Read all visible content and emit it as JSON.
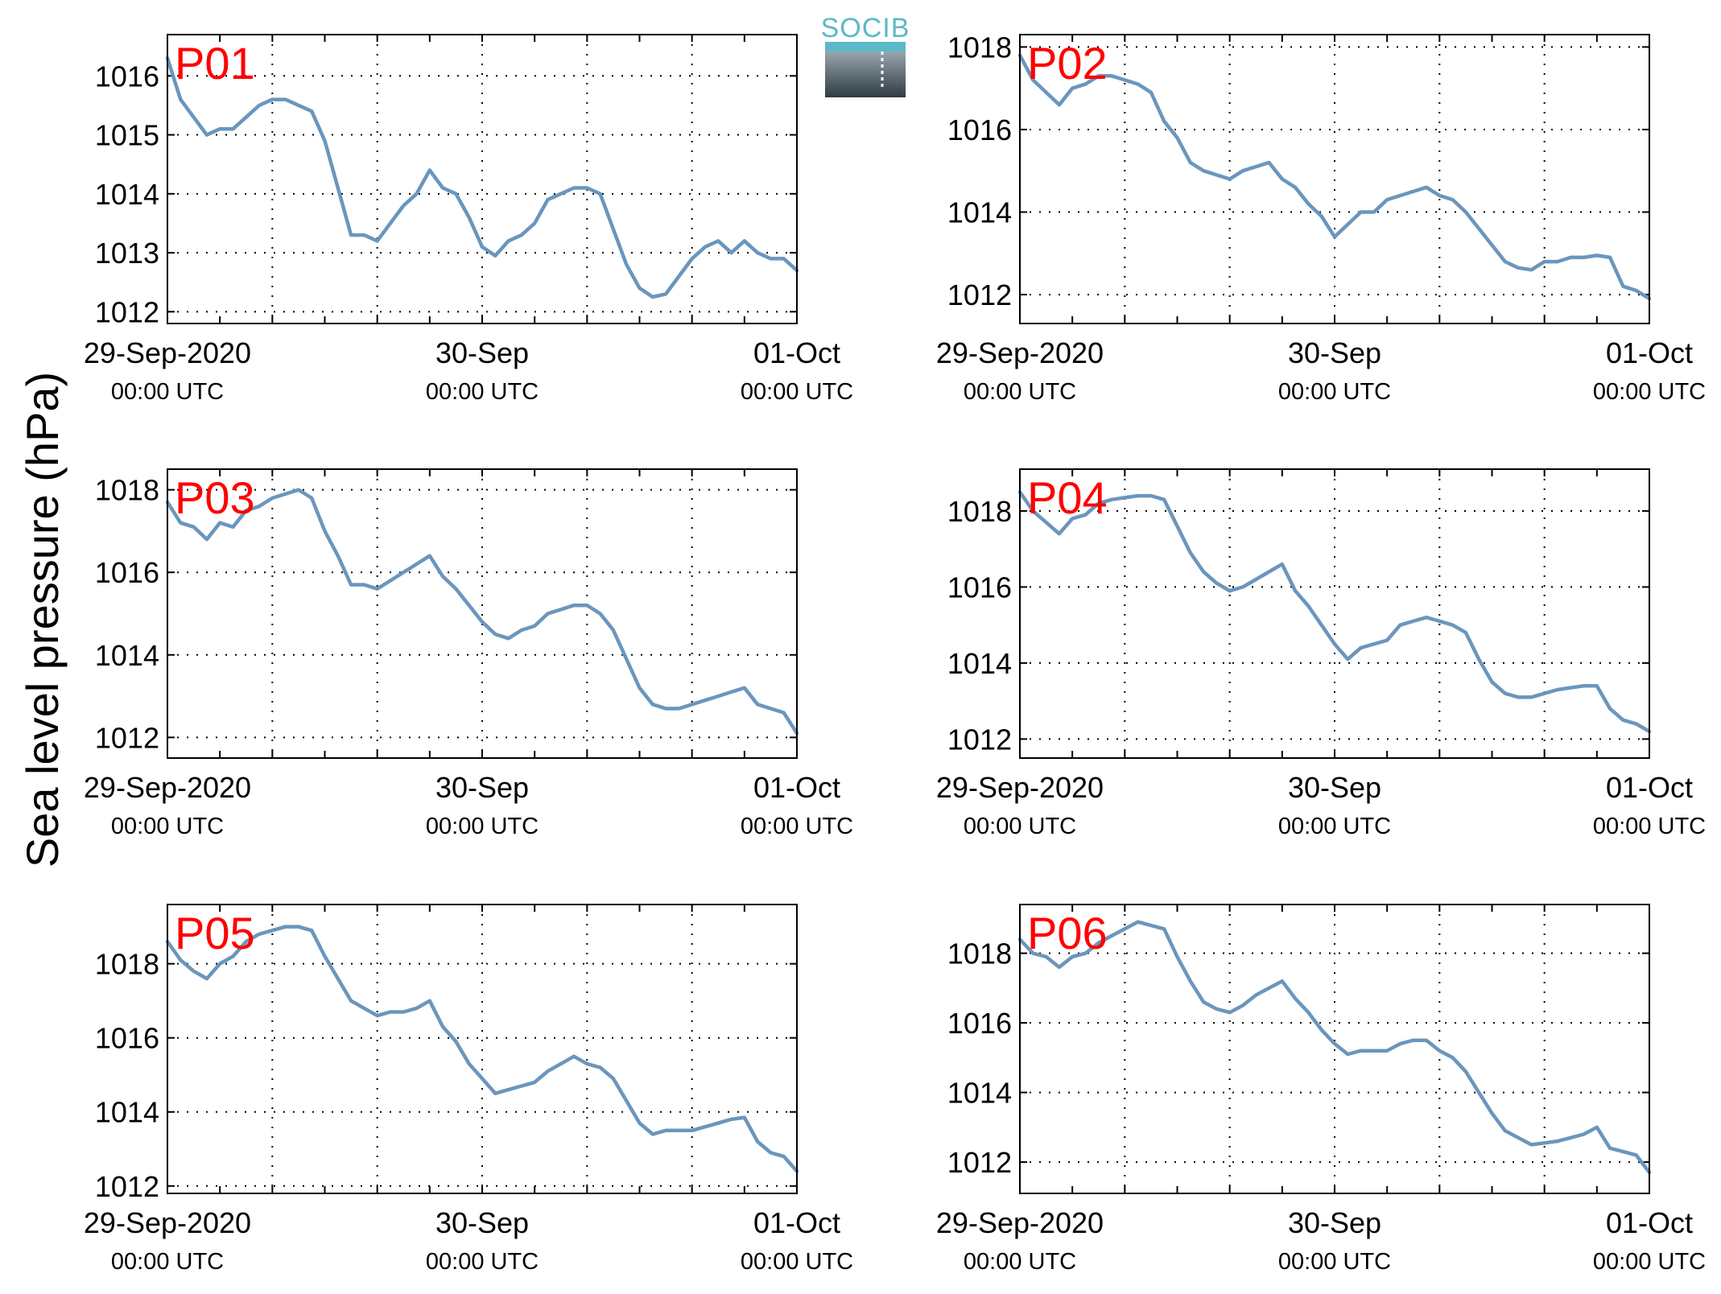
{
  "figure": {
    "ylabel": "Sea level pressure (hPa)",
    "logo": {
      "text": "SOCIB",
      "color_top": "#5bb9c9",
      "color_bottom": "#2f3b45"
    }
  },
  "style": {
    "line_color": "#6a96bd",
    "panel_label_color": "#ff0000",
    "grid": "dotted"
  },
  "x_ticks": [
    {
      "date": "29-Sep-2020",
      "time": "00:00 UTC",
      "hours": 0
    },
    {
      "date": "30-Sep",
      "time": "00:00 UTC",
      "hours": 24
    },
    {
      "date": "01-Oct",
      "time": "00:00 UTC",
      "hours": 48
    }
  ],
  "chart_data": [
    {
      "type": "line",
      "label": "P01",
      "xlim": [
        0,
        48
      ],
      "ylim": [
        1011.8,
        1016.7
      ],
      "yticks": [
        1012,
        1013,
        1014,
        1015,
        1016
      ],
      "x": [
        0,
        1,
        2,
        3,
        4,
        5,
        6,
        7,
        8,
        9,
        10,
        11,
        12,
        13,
        14,
        15,
        16,
        17,
        18,
        19,
        20,
        21,
        22,
        23,
        24,
        25,
        26,
        27,
        28,
        29,
        30,
        31,
        32,
        33,
        34,
        35,
        36,
        37,
        38,
        39,
        40,
        41,
        42,
        43,
        44,
        45,
        46,
        47,
        48
      ],
      "y": [
        1016.3,
        1015.6,
        1015.3,
        1015.0,
        1015.1,
        1015.1,
        1015.3,
        1015.5,
        1015.6,
        1015.6,
        1015.5,
        1015.4,
        1014.9,
        1014.1,
        1013.3,
        1013.3,
        1013.2,
        1013.5,
        1013.8,
        1014.0,
        1014.4,
        1014.1,
        1014.0,
        1013.6,
        1013.1,
        1012.95,
        1013.2,
        1013.3,
        1013.5,
        1013.9,
        1014.0,
        1014.1,
        1014.1,
        1014.0,
        1013.4,
        1012.8,
        1012.4,
        1012.25,
        1012.3,
        1012.6,
        1012.9,
        1013.1,
        1013.2,
        1013.0,
        1013.2,
        1013.0,
        1012.9,
        1012.9,
        1012.7
      ]
    },
    {
      "type": "line",
      "label": "P02",
      "xlim": [
        0,
        48
      ],
      "ylim": [
        1011.3,
        1018.3
      ],
      "yticks": [
        1012,
        1014,
        1016,
        1018
      ],
      "x": [
        0,
        1,
        2,
        3,
        4,
        5,
        6,
        7,
        8,
        9,
        10,
        11,
        12,
        13,
        14,
        15,
        16,
        17,
        18,
        19,
        20,
        21,
        22,
        23,
        24,
        25,
        26,
        27,
        28,
        29,
        30,
        31,
        32,
        33,
        34,
        35,
        36,
        37,
        38,
        39,
        40,
        41,
        42,
        43,
        44,
        45,
        46,
        47,
        48
      ],
      "y": [
        1017.8,
        1017.2,
        1016.9,
        1016.6,
        1017.0,
        1017.1,
        1017.3,
        1017.3,
        1017.2,
        1017.1,
        1016.9,
        1016.2,
        1015.8,
        1015.2,
        1015.0,
        1014.9,
        1014.8,
        1015.0,
        1015.1,
        1015.2,
        1014.8,
        1014.6,
        1014.2,
        1013.9,
        1013.4,
        1013.7,
        1014.0,
        1014.0,
        1014.3,
        1014.4,
        1014.5,
        1014.6,
        1014.4,
        1014.3,
        1014.0,
        1013.6,
        1013.2,
        1012.8,
        1012.65,
        1012.6,
        1012.8,
        1012.8,
        1012.9,
        1012.9,
        1012.95,
        1012.9,
        1012.2,
        1012.1,
        1011.9
      ]
    },
    {
      "type": "line",
      "label": "P03",
      "xlim": [
        0,
        48
      ],
      "ylim": [
        1011.5,
        1018.5
      ],
      "yticks": [
        1012,
        1014,
        1016,
        1018
      ],
      "x": [
        0,
        1,
        2,
        3,
        4,
        5,
        6,
        7,
        8,
        9,
        10,
        11,
        12,
        13,
        14,
        15,
        16,
        17,
        18,
        19,
        20,
        21,
        22,
        23,
        24,
        25,
        26,
        27,
        28,
        29,
        30,
        31,
        32,
        33,
        34,
        35,
        36,
        37,
        38,
        39,
        40,
        41,
        42,
        43,
        44,
        45,
        46,
        47,
        48
      ],
      "y": [
        1017.7,
        1017.2,
        1017.1,
        1016.8,
        1017.2,
        1017.1,
        1017.5,
        1017.6,
        1017.8,
        1017.9,
        1018.0,
        1017.8,
        1017.0,
        1016.4,
        1015.7,
        1015.7,
        1015.6,
        1015.8,
        1016.0,
        1016.2,
        1016.4,
        1015.9,
        1015.6,
        1015.2,
        1014.8,
        1014.5,
        1014.4,
        1014.6,
        1014.7,
        1015.0,
        1015.1,
        1015.2,
        1015.2,
        1015.0,
        1014.6,
        1013.9,
        1013.2,
        1012.8,
        1012.7,
        1012.7,
        1012.8,
        1012.9,
        1013.0,
        1013.1,
        1013.2,
        1012.8,
        1012.7,
        1012.6,
        1012.1
      ]
    },
    {
      "type": "line",
      "label": "P04",
      "xlim": [
        0,
        48
      ],
      "ylim": [
        1011.5,
        1019.1
      ],
      "yticks": [
        1012,
        1014,
        1016,
        1018
      ],
      "x": [
        0,
        1,
        2,
        3,
        4,
        5,
        6,
        7,
        8,
        9,
        10,
        11,
        12,
        13,
        14,
        15,
        16,
        17,
        18,
        19,
        20,
        21,
        22,
        23,
        24,
        25,
        26,
        27,
        28,
        29,
        30,
        31,
        32,
        33,
        34,
        35,
        36,
        37,
        38,
        39,
        40,
        41,
        42,
        43,
        44,
        45,
        46,
        47,
        48
      ],
      "y": [
        1018.5,
        1018.0,
        1017.7,
        1017.4,
        1017.8,
        1017.9,
        1018.2,
        1018.3,
        1018.35,
        1018.4,
        1018.4,
        1018.3,
        1017.6,
        1016.9,
        1016.4,
        1016.1,
        1015.9,
        1016.0,
        1016.2,
        1016.4,
        1016.6,
        1015.9,
        1015.5,
        1015.0,
        1014.5,
        1014.1,
        1014.4,
        1014.5,
        1014.6,
        1015.0,
        1015.1,
        1015.2,
        1015.1,
        1015.0,
        1014.8,
        1014.1,
        1013.5,
        1013.2,
        1013.1,
        1013.1,
        1013.2,
        1013.3,
        1013.35,
        1013.4,
        1013.4,
        1012.8,
        1012.5,
        1012.4,
        1012.2
      ]
    },
    {
      "type": "line",
      "label": "P05",
      "xlim": [
        0,
        48
      ],
      "ylim": [
        1011.8,
        1019.6
      ],
      "yticks": [
        1012,
        1014,
        1016,
        1018
      ],
      "x": [
        0,
        1,
        2,
        3,
        4,
        5,
        6,
        7,
        8,
        9,
        10,
        11,
        12,
        13,
        14,
        15,
        16,
        17,
        18,
        19,
        20,
        21,
        22,
        23,
        24,
        25,
        26,
        27,
        28,
        29,
        30,
        31,
        32,
        33,
        34,
        35,
        36,
        37,
        38,
        39,
        40,
        41,
        42,
        43,
        44,
        45,
        46,
        47,
        48
      ],
      "y": [
        1018.6,
        1018.1,
        1017.8,
        1017.6,
        1018.0,
        1018.2,
        1018.6,
        1018.8,
        1018.9,
        1019.0,
        1019.0,
        1018.9,
        1018.2,
        1017.6,
        1017.0,
        1016.8,
        1016.6,
        1016.7,
        1016.7,
        1016.8,
        1017.0,
        1016.3,
        1015.9,
        1015.3,
        1014.9,
        1014.5,
        1014.6,
        1014.7,
        1014.8,
        1015.1,
        1015.3,
        1015.5,
        1015.3,
        1015.2,
        1014.9,
        1014.3,
        1013.7,
        1013.4,
        1013.5,
        1013.5,
        1013.5,
        1013.6,
        1013.7,
        1013.8,
        1013.85,
        1013.2,
        1012.9,
        1012.8,
        1012.4
      ]
    },
    {
      "type": "line",
      "label": "P06",
      "xlim": [
        0,
        48
      ],
      "ylim": [
        1011.1,
        1019.4
      ],
      "yticks": [
        1012,
        1014,
        1016,
        1018
      ],
      "x": [
        0,
        1,
        2,
        3,
        4,
        5,
        6,
        7,
        8,
        9,
        10,
        11,
        12,
        13,
        14,
        15,
        16,
        17,
        18,
        19,
        20,
        21,
        22,
        23,
        24,
        25,
        26,
        27,
        28,
        29,
        30,
        31,
        32,
        33,
        34,
        35,
        36,
        37,
        38,
        39,
        40,
        41,
        42,
        43,
        44,
        45,
        46,
        47,
        48
      ],
      "y": [
        1018.4,
        1018.0,
        1017.9,
        1017.6,
        1017.9,
        1018.0,
        1018.3,
        1018.5,
        1018.7,
        1018.9,
        1018.8,
        1018.7,
        1017.9,
        1017.2,
        1016.6,
        1016.4,
        1016.3,
        1016.5,
        1016.8,
        1017.0,
        1017.2,
        1016.7,
        1016.3,
        1015.8,
        1015.4,
        1015.1,
        1015.2,
        1015.2,
        1015.2,
        1015.4,
        1015.5,
        1015.5,
        1015.2,
        1015.0,
        1014.6,
        1014.0,
        1013.4,
        1012.9,
        1012.7,
        1012.5,
        1012.55,
        1012.6,
        1012.7,
        1012.8,
        1013.0,
        1012.4,
        1012.3,
        1012.2,
        1011.7
      ]
    }
  ]
}
